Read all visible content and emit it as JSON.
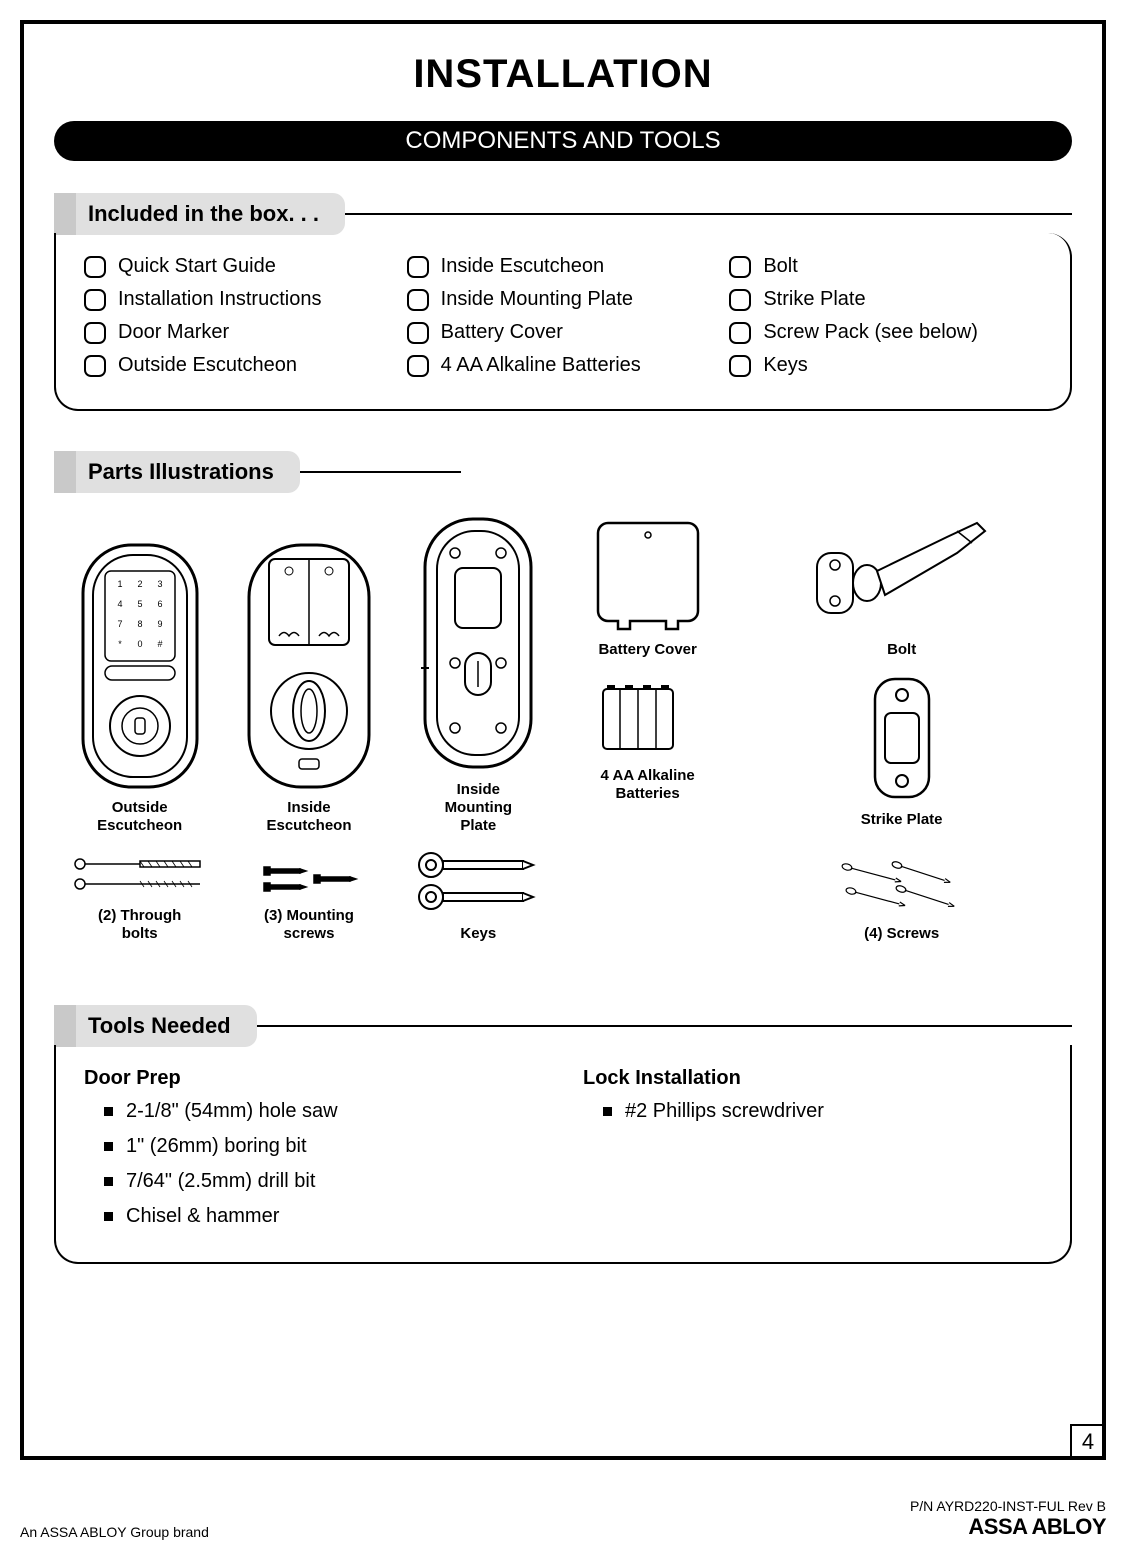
{
  "page": {
    "title": "INSTALLATION",
    "banner": "COMPONENTS AND TOOLS",
    "page_number": "4"
  },
  "included": {
    "header": "Included in the box. . .",
    "col1": [
      "Quick Start Guide",
      "Installation Instructions",
      "Door Marker",
      "Outside Escutcheon"
    ],
    "col2": [
      "Inside Escutcheon",
      "Inside Mounting Plate",
      "Battery Cover",
      "4 AA Alkaline Batteries"
    ],
    "col3": [
      "Bolt",
      "Strike Plate",
      "Screw Pack (see below)",
      "Keys"
    ]
  },
  "parts": {
    "header": "Parts Illustrations",
    "labels": {
      "outside_escutcheon": "Outside\nEscutcheon",
      "inside_escutcheon": "Inside\nEscutcheon",
      "inside_mounting_plate": "Inside\nMounting\nPlate",
      "battery_cover": "Battery Cover",
      "batteries": "4 AA Alkaline\nBatteries",
      "bolt": "Bolt",
      "strike_plate": "Strike Plate",
      "through_bolts": "(2) Through\nbolts",
      "mounting_screws": "(3) Mounting\nscrews",
      "keys": "Keys",
      "screws": "(4) Screws"
    }
  },
  "tools": {
    "header": "Tools Needed",
    "door_prep": {
      "title": "Door Prep",
      "items": [
        "2-1/8\" (54mm) hole saw",
        "1\" (26mm) boring bit",
        "7/64\" (2.5mm) drill bit",
        "Chisel & hammer"
      ]
    },
    "lock_install": {
      "title": "Lock Installation",
      "items": [
        "#2 Phillips screwdriver"
      ]
    }
  },
  "footer": {
    "left": "An ASSA ABLOY Group brand",
    "pn": "P/N AYRD220-INST-FUL Rev B",
    "brand": "ASSA ABLOY"
  },
  "style": {
    "text_color": "#000000",
    "banner_bg": "#000000",
    "banner_fg": "#ffffff",
    "tab_stub": "#c9c9c9",
    "tab_bg": "#e0e0e0",
    "stroke": "#000000",
    "stroke_width": 2,
    "fill": "#ffffff"
  }
}
